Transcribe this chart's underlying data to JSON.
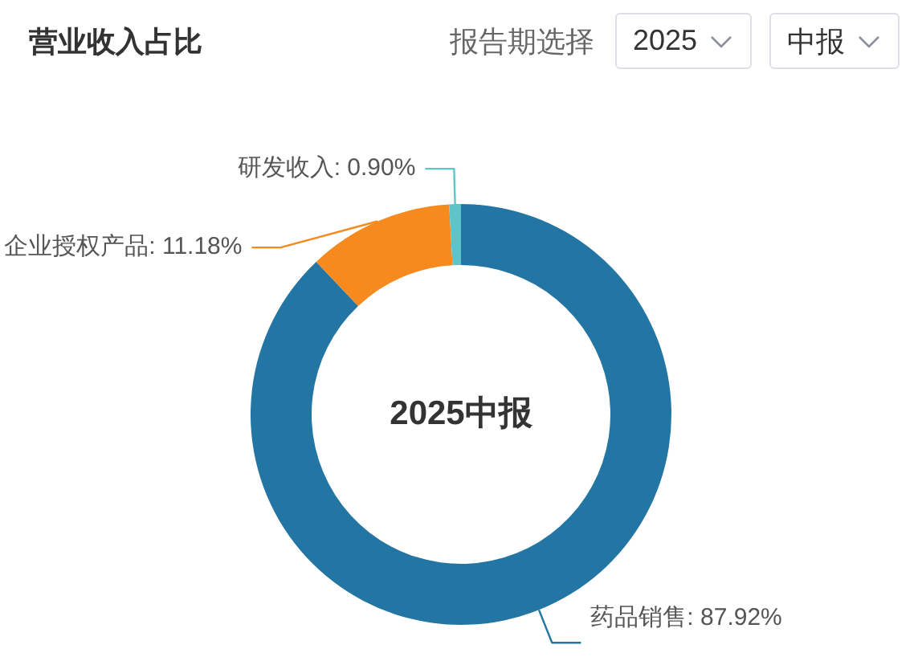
{
  "chart_data": {
    "type": "donut",
    "title": "营业收入占比",
    "categories": [
      "药品销售",
      "企业授权产品",
      "研发收入"
    ],
    "values": [
      87.92,
      11.18,
      0.9
    ],
    "colors": [
      "#2376a3",
      "#f68a1e",
      "#5ec4c8"
    ],
    "value_labels": [
      "87.92%",
      "11.18%",
      "0.90%"
    ],
    "annotations": [
      "报告期选择",
      "2025",
      "中报",
      "2025中报"
    ]
  }
}
